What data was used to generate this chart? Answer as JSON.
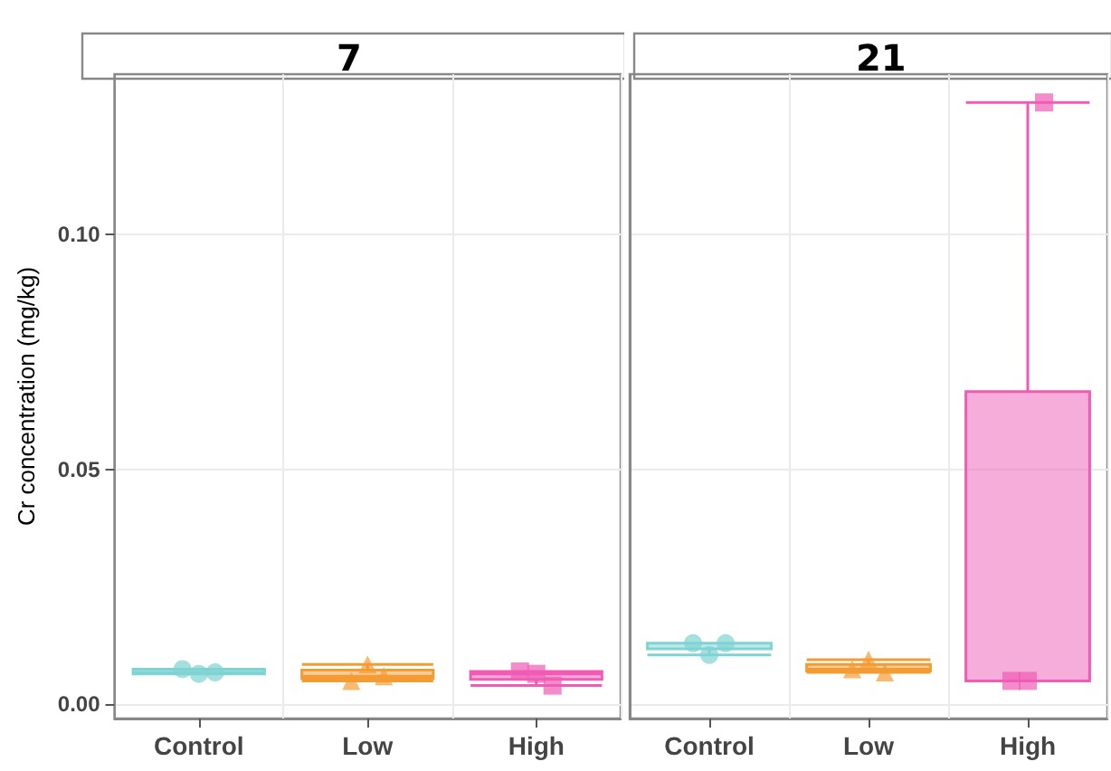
{
  "chart_data": [
    {
      "type": "box",
      "title": "7",
      "ylabel": "Cr concentration (mg/kg)",
      "categories": [
        "Control",
        "Low",
        "High"
      ],
      "boxes": [
        {
          "low": 0.0065,
          "q1": 0.0065,
          "median": 0.0068,
          "q3": 0.0075,
          "high": 0.0075
        },
        {
          "low": 0.005,
          "q1": 0.0055,
          "median": 0.006,
          "q3": 0.0073,
          "high": 0.0085
        },
        {
          "low": 0.004,
          "q1": 0.0053,
          "median": 0.0065,
          "q3": 0.007,
          "high": 0.007
        }
      ],
      "colors": [
        "#7fd3d3",
        "#f39c33",
        "#f05bb5"
      ],
      "series": [
        {
          "type": "scatter",
          "marker": "circle",
          "color": "#7fd3d3",
          "x": [
            "Control",
            "Control",
            "Control"
          ],
          "values": [
            0.0075,
            0.0065,
            0.0068
          ]
        },
        {
          "type": "scatter",
          "marker": "triangle",
          "color": "#f39c33",
          "x": [
            "Low",
            "Low",
            "Low"
          ],
          "values": [
            0.005,
            0.0085,
            0.006
          ]
        },
        {
          "type": "scatter",
          "marker": "square",
          "color": "#f05bb5",
          "x": [
            "High",
            "High",
            "High"
          ],
          "values": [
            0.007,
            0.0065,
            0.004
          ]
        }
      ],
      "ylim": [
        -0.003,
        0.134
      ],
      "yticks": [
        {
          "value": 0,
          "label": "0.00"
        },
        {
          "value": 0.05,
          "label": "0.05"
        },
        {
          "value": 0.1,
          "label": "0.10"
        }
      ],
      "grid": true
    },
    {
      "type": "box",
      "title": "21",
      "categories": [
        "Control",
        "Low",
        "High"
      ],
      "boxes": [
        {
          "low": 0.0105,
          "q1": 0.0118,
          "median": 0.013,
          "q3": 0.013,
          "high": 0.013
        },
        {
          "low": 0.0068,
          "q1": 0.0071,
          "median": 0.0075,
          "q3": 0.0085,
          "high": 0.0095
        },
        {
          "low": 0.005,
          "q1": 0.005,
          "median": 0.005,
          "q3": 0.0665,
          "high": 0.128
        }
      ],
      "colors": [
        "#7fd3d3",
        "#f39c33",
        "#f05bb5"
      ],
      "series": [
        {
          "type": "scatter",
          "marker": "circle",
          "color": "#7fd3d3",
          "x": [
            "Control",
            "Control",
            "Control"
          ],
          "values": [
            0.013,
            0.0105,
            0.013
          ]
        },
        {
          "type": "scatter",
          "marker": "triangle",
          "color": "#f39c33",
          "x": [
            "Low",
            "Low",
            "Low"
          ],
          "values": [
            0.0075,
            0.0095,
            0.0068
          ]
        },
        {
          "type": "scatter",
          "marker": "square",
          "color": "#f05bb5",
          "x": [
            "High",
            "High",
            "High"
          ],
          "values": [
            0.005,
            0.005,
            0.128
          ]
        }
      ],
      "ylim": [
        -0.003,
        0.134
      ],
      "yticks": [
        0,
        0.05,
        0.1
      ],
      "grid": true,
      "tick_labels": "x"
    }
  ]
}
